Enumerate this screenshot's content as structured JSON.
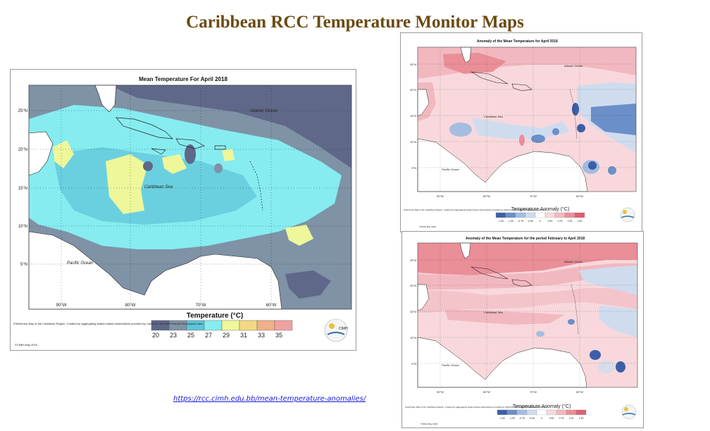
{
  "page": {
    "title": "Caribbean RCC Temperature Monitor Maps"
  },
  "link": {
    "text": "https://rcc.cimh.edu.bb/mean-temperature-anomalies/"
  },
  "main_map": {
    "title": "Mean Temperature For April 2018",
    "lat_labels": [
      "25°N",
      "20°N",
      "15°N",
      "10°N",
      "5°N"
    ],
    "lon_labels": [
      "90°W",
      "80°W",
      "70°W",
      "60°W"
    ],
    "ocean_labels": {
      "atlantic": "Atlantic Ocean",
      "caribbean": "Caribbean Sea",
      "pacific": "Pacific Ocean"
    },
    "legend_title": "Temperature (°C)",
    "legend_ticks": [
      "20",
      "23",
      "25",
      "27",
      "29",
      "31",
      "33",
      "35"
    ],
    "legend_colors": [
      "#5f6888",
      "#7f92a6",
      "#5ec5d8",
      "#86ecf0",
      "#eef79a",
      "#f2d882",
      "#f0b08a",
      "#efa3a0"
    ],
    "footnote": "Preliminary Map of the Caribbean Region. Created by aggregating station based observations provided by CariCOF, with NCEP/NCAR Reanalysis Data.",
    "credit": "©CIMH May 2018",
    "logo_text": "CIMH"
  },
  "map_top": {
    "title": "Anomaly of the Mean Temperature for April 2018",
    "lat_labels": [
      "25°N",
      "20°N",
      "15°N",
      "10°N",
      "5°N"
    ],
    "lon_labels": [
      "90°W",
      "80°W",
      "70°W",
      "60°W"
    ],
    "ocean_labels": {
      "atlantic": "Atlantic Ocean",
      "caribbean": "Caribbean Sea",
      "pacific": "Pacific Ocean"
    },
    "legend_title": "Temperature Anomaly (°C)",
    "legend_ticks": [
      "-1.50",
      "-1.00",
      "-0.75",
      "-0.50",
      "0",
      "0.50",
      "0.75",
      "1.00",
      "1.50"
    ],
    "footnote": "Preliminary Map of the Caribbean Region. Created by aggregating station based observations provided by CariCOF, with NCEP/NCAR Reanalysis Data.",
    "credit": "©CIMH May 2018"
  },
  "map_bottom": {
    "title": "Anomaly of the Mean Temperature for the period February to April 2018",
    "lat_labels": [
      "25°N",
      "20°N",
      "15°N",
      "10°N",
      "5°N"
    ],
    "lon_labels": [
      "90°W",
      "80°W",
      "70°W",
      "60°W"
    ],
    "ocean_labels": {
      "atlantic": "Atlantic Ocean",
      "caribbean": "Caribbean Sea",
      "pacific": "Pacific Ocean"
    },
    "legend_title": "Temperature Anomaly (°C)",
    "legend_ticks": [
      "-1.50",
      "-1.00",
      "-0.75",
      "-0.50",
      "0",
      "0.50",
      "0.75",
      "1.00",
      "1.50"
    ],
    "footnote": "Preliminary Map of the Caribbean Region. Created by aggregating station based observations provided by CariCOF, with NCEP/NCAR Reanalysis Data.",
    "credit": "©CIMH May 2018"
  },
  "anomaly_colors": [
    "#3c5fa8",
    "#6b8fc8",
    "#a4bde0",
    "#cfdcee",
    "#ffffff",
    "#f8d8dc",
    "#f2b8c0",
    "#ea8e98",
    "#dc6070"
  ]
}
